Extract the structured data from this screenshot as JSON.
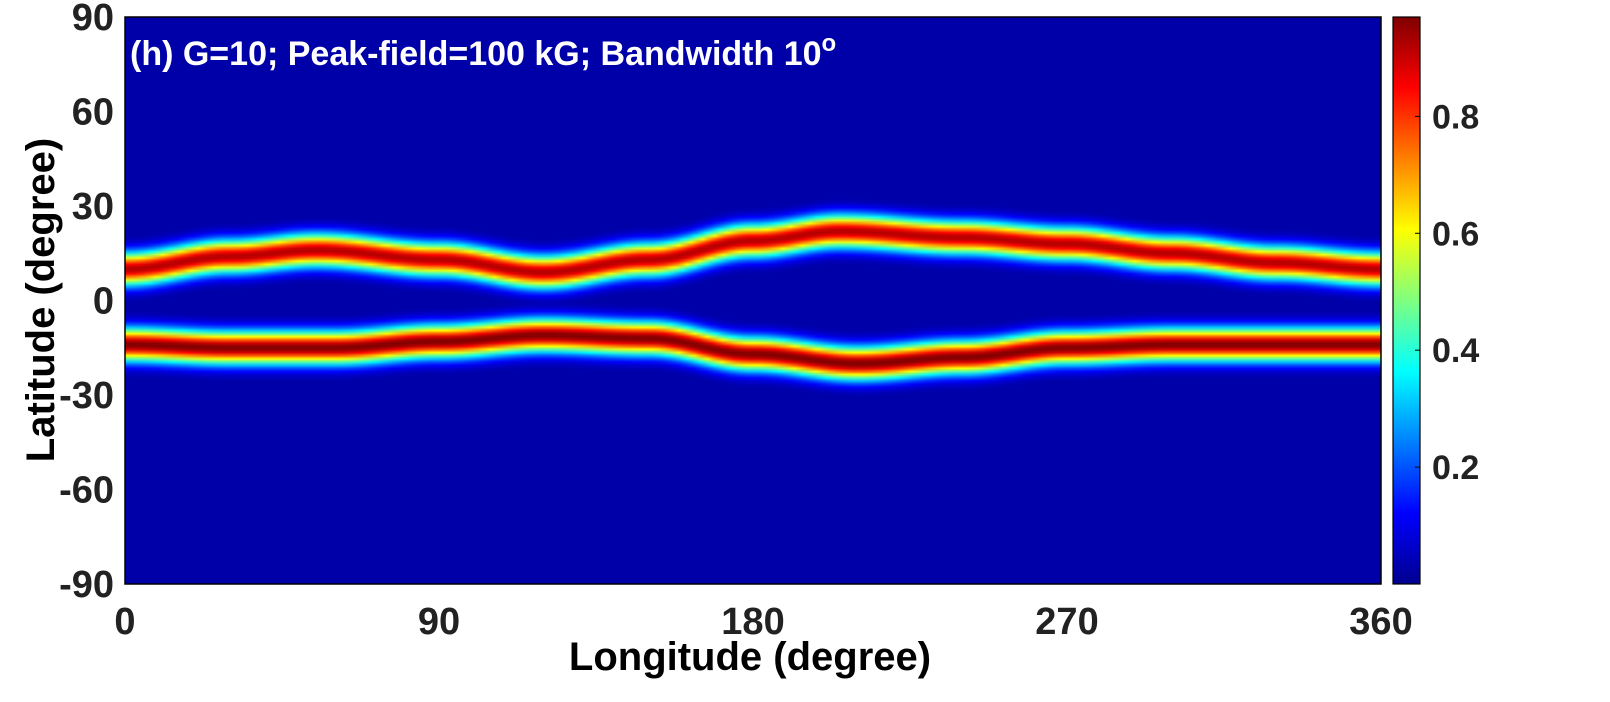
{
  "chart_data": {
    "type": "heatmap",
    "title": "(h) G=10; Peak-field=100 kG; Bandwidth 10",
    "title_superscript": "o",
    "xlabel": "Longitude (degree)",
    "ylabel": "Latitude (degree)",
    "xlim": [
      0,
      360
    ],
    "ylim": [
      -90,
      90
    ],
    "x_ticks": [
      0,
      90,
      180,
      270,
      360
    ],
    "y_ticks": [
      90,
      60,
      30,
      0,
      -30,
      -60,
      -90
    ],
    "colormap": "jet",
    "colorbar": {
      "range": [
        0,
        0.97
      ],
      "ticks": [
        0.8,
        0.6,
        0.4,
        0.2
      ],
      "placement": "right"
    },
    "bands": [
      {
        "name": "",
        "lon": [
          0,
          30,
          55,
          90,
          120,
          150,
          180,
          205,
          240,
          270,
          300,
          330,
          360
        ],
        "lat": [
          10,
          14,
          16,
          13,
          9,
          13,
          19,
          22,
          20,
          18,
          15,
          12,
          10
        ],
        "peak": 0.92
      },
      {
        "name": "",
        "lon": [
          0,
          30,
          60,
          90,
          120,
          150,
          180,
          210,
          240,
          270,
          300,
          330,
          360
        ],
        "lat": [
          -14,
          -15,
          -15,
          -13,
          -11,
          -12,
          -17,
          -20,
          -18,
          -15,
          -14,
          -14,
          -14
        ],
        "peak": 0.97
      }
    ],
    "band_halfwidth_deg": 5,
    "grid": false
  }
}
